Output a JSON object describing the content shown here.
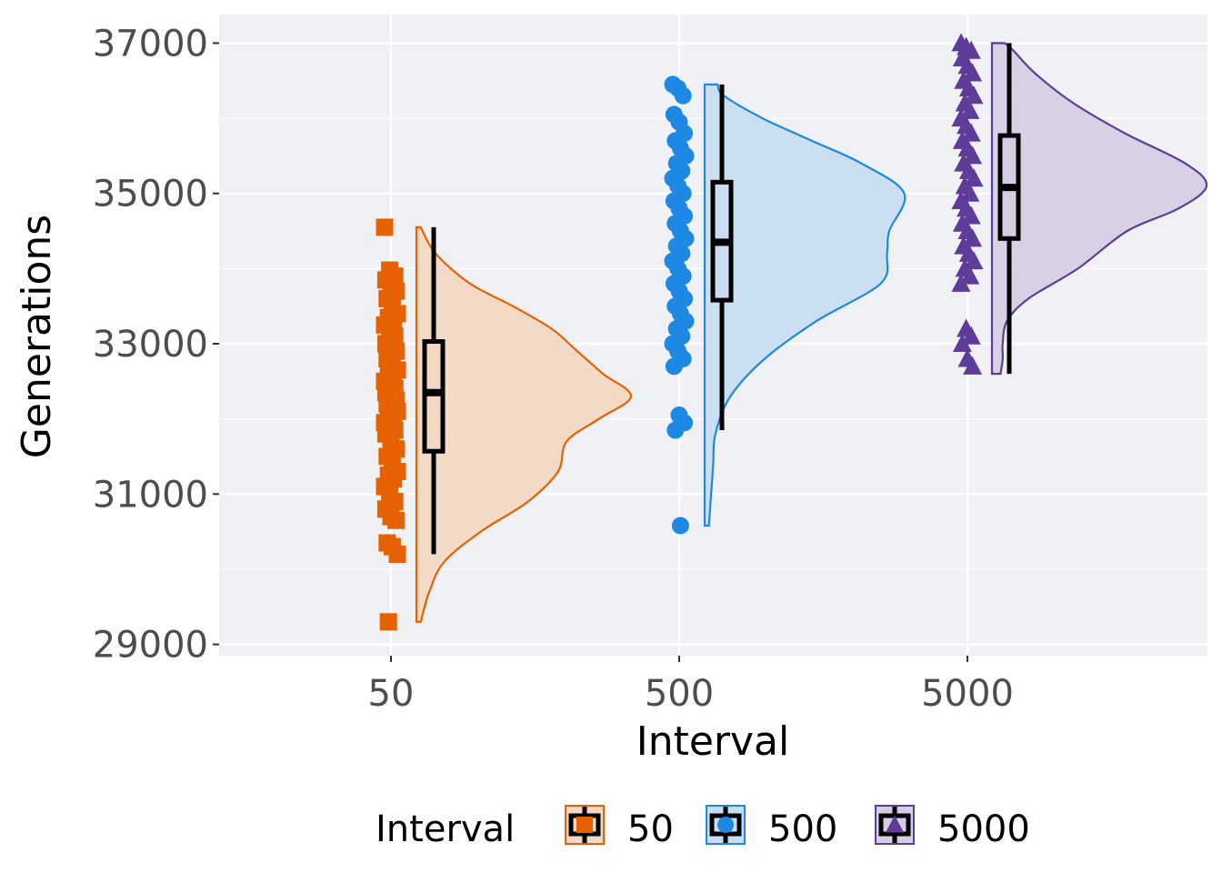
{
  "chart_data": {
    "type": "raincloud",
    "xlabel": "Interval",
    "ylabel": "Generations",
    "categories": [
      "50",
      "500",
      "5000"
    ],
    "y_ticks": [
      29000,
      31000,
      33000,
      35000,
      37000
    ],
    "y_tick_labels": [
      "29000",
      "31000",
      "33000",
      "35000",
      "37000"
    ],
    "ylim": [
      28850,
      37380
    ],
    "grid": true,
    "legend": {
      "title": "Interval",
      "position": "bottom",
      "entries": [
        "50",
        "500",
        "5000"
      ]
    },
    "series": [
      {
        "name": "50",
        "color": "#e66100",
        "fill": "#f2d8c4",
        "marker": "square",
        "points": [
          34550,
          33980,
          33900,
          33850,
          33800,
          33700,
          33600,
          33500,
          33400,
          33350,
          33300,
          33250,
          33200,
          33100,
          33000,
          32950,
          32900,
          32800,
          32700,
          32650,
          32600,
          32550,
          32500,
          32450,
          32400,
          32350,
          32300,
          32250,
          32200,
          32150,
          32100,
          32050,
          32000,
          31950,
          31900,
          31850,
          31800,
          31700,
          31600,
          31500,
          31400,
          31300,
          31250,
          31200,
          31100,
          31000,
          30900,
          30800,
          30700,
          30650,
          30350,
          30300,
          30200,
          29300
        ],
        "box": {
          "min": 30200,
          "q1": 31570,
          "median": 32350,
          "q3": 33030,
          "max": 34550
        },
        "density": [
          [
            29300,
            0.02
          ],
          [
            29700,
            0.06
          ],
          [
            30100,
            0.13
          ],
          [
            30500,
            0.3
          ],
          [
            30900,
            0.52
          ],
          [
            31300,
            0.66
          ],
          [
            31700,
            0.7
          ],
          [
            32000,
            0.85
          ],
          [
            32300,
            1.0
          ],
          [
            32600,
            0.87
          ],
          [
            32900,
            0.75
          ],
          [
            33200,
            0.63
          ],
          [
            33500,
            0.45
          ],
          [
            33800,
            0.25
          ],
          [
            34200,
            0.09
          ],
          [
            34550,
            0.02
          ]
        ]
      },
      {
        "name": "500",
        "color": "#1e88e5",
        "fill": "#c8ddf2",
        "marker": "circle",
        "points": [
          36450,
          36400,
          36300,
          36050,
          35950,
          35800,
          35700,
          35600,
          35500,
          35400,
          35300,
          35200,
          35100,
          35000,
          34900,
          34800,
          34700,
          34600,
          34500,
          34400,
          34300,
          34200,
          34100,
          34000,
          33900,
          33800,
          33700,
          33600,
          33500,
          33400,
          33300,
          33200,
          33100,
          33000,
          32900,
          32800,
          32700,
          32050,
          31950,
          31850,
          30580
        ],
        "box": {
          "min": 31850,
          "q1": 33580,
          "median": 34350,
          "q3": 35150,
          "max": 36450
        },
        "density": [
          [
            30580,
            0.02
          ],
          [
            31000,
            0.03
          ],
          [
            31400,
            0.04
          ],
          [
            31800,
            0.05
          ],
          [
            32300,
            0.12
          ],
          [
            32800,
            0.28
          ],
          [
            33300,
            0.52
          ],
          [
            33800,
            0.82
          ],
          [
            34200,
            0.85
          ],
          [
            34500,
            0.86
          ],
          [
            35000,
            0.93
          ],
          [
            35400,
            0.73
          ],
          [
            35700,
            0.5
          ],
          [
            36000,
            0.27
          ],
          [
            36300,
            0.09
          ],
          [
            36450,
            0.06
          ]
        ]
      },
      {
        "name": "5000",
        "color": "#5e3c99",
        "fill": "#d6cde4",
        "marker": "triangle",
        "points": [
          37000,
          36950,
          36900,
          36800,
          36700,
          36600,
          36500,
          36400,
          36300,
          36200,
          36100,
          36000,
          35900,
          35800,
          35700,
          35600,
          35500,
          35400,
          35300,
          35200,
          35100,
          35000,
          34900,
          34800,
          34700,
          34600,
          34500,
          34400,
          34300,
          34200,
          34100,
          34000,
          33900,
          33800,
          33200,
          33100,
          33000,
          32800,
          32700
        ],
        "box": {
          "min": 32600,
          "q1": 34400,
          "median": 35080,
          "q3": 35770,
          "max": 37000
        },
        "density": [
          [
            32600,
            0.04
          ],
          [
            32800,
            0.05
          ],
          [
            33000,
            0.05
          ],
          [
            33300,
            0.07
          ],
          [
            33600,
            0.17
          ],
          [
            34000,
            0.4
          ],
          [
            34500,
            0.63
          ],
          [
            34800,
            0.87
          ],
          [
            35100,
            1.0
          ],
          [
            35400,
            0.9
          ],
          [
            35800,
            0.62
          ],
          [
            36200,
            0.38
          ],
          [
            36600,
            0.2
          ],
          [
            36900,
            0.1
          ],
          [
            37000,
            0.06
          ]
        ]
      }
    ]
  }
}
